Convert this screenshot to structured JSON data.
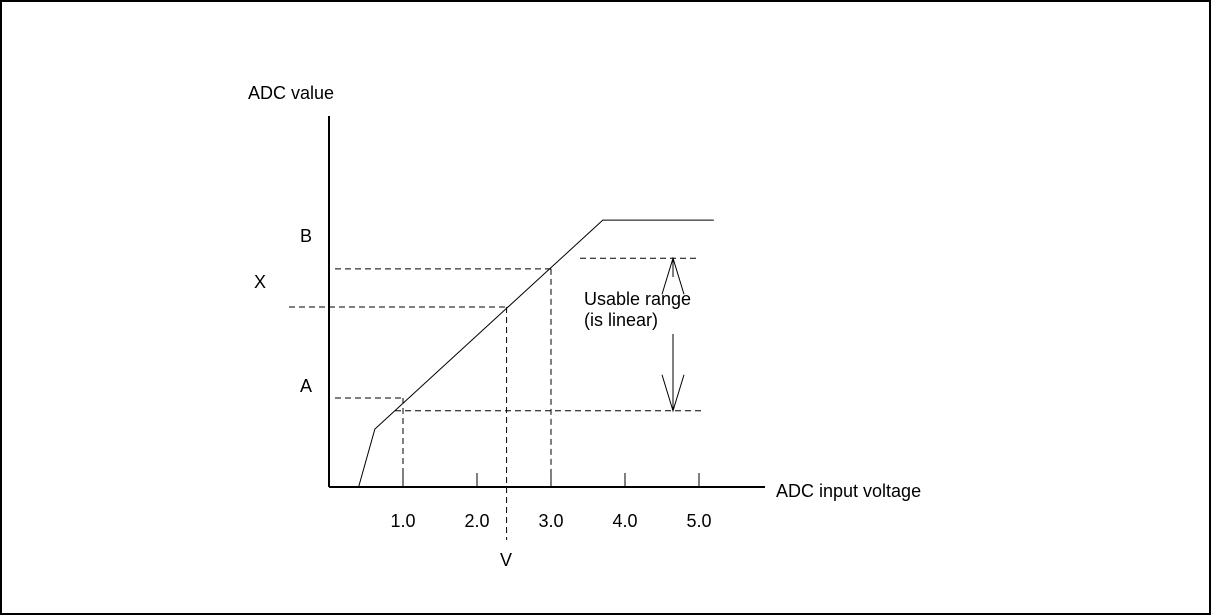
{
  "chart_data": {
    "type": "line",
    "ylabel": "ADC value",
    "xlabel": "ADC input voltage",
    "x_ticks": [
      "1.0",
      "2.0",
      "3.0",
      "4.0",
      "5.0"
    ],
    "y_markers": {
      "A": "A",
      "B": "B",
      "X": "X"
    },
    "x_marker": "V",
    "annotation": [
      "Usable range",
      "(is linear)"
    ],
    "series": [
      {
        "x": [
          0.4,
          0.62,
          3.7,
          5.2
        ],
        "y": [
          0,
          0.19,
          0.875,
          0.875
        ]
      }
    ],
    "xlim": [
      0,
      5.7
    ],
    "ylim": [
      0,
      1
    ],
    "guides": {
      "A_y": 0.292,
      "A_x": 1.0,
      "B_y": 0.715,
      "B_x": 3.0,
      "X_y": 0.59,
      "V_x": 2.4,
      "usable_low_y": 0.25,
      "usable_high_y": 0.75
    }
  }
}
